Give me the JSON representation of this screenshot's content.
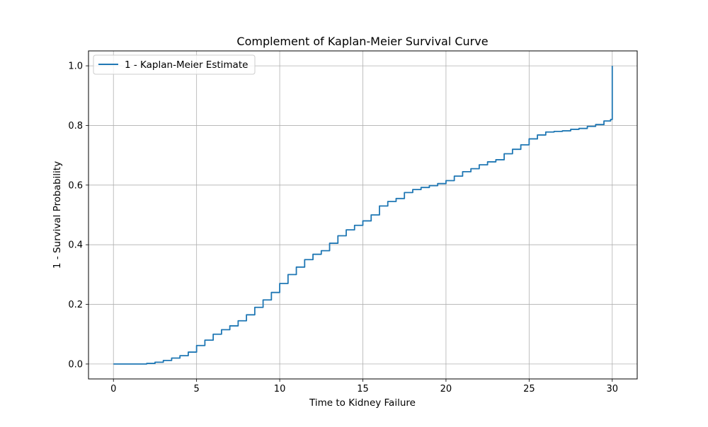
{
  "chart_data": {
    "type": "line",
    "title": "Complement of Kaplan-Meier Survival Curve",
    "xlabel": "Time to Kidney Failure",
    "ylabel": "1 - Survival Probability",
    "xlim": [
      -1.5,
      31.5
    ],
    "ylim": [
      -0.05,
      1.05
    ],
    "x_ticks": [
      0,
      5,
      10,
      15,
      20,
      25,
      30
    ],
    "y_ticks": [
      0.0,
      0.2,
      0.4,
      0.6,
      0.8,
      1.0
    ],
    "x_tick_labels": [
      "0",
      "5",
      "10",
      "15",
      "20",
      "25",
      "30"
    ],
    "y_tick_labels": [
      "0.0",
      "0.2",
      "0.4",
      "0.6",
      "0.8",
      "1.0"
    ],
    "grid": true,
    "legend_position": "top-left",
    "series": [
      {
        "name": "1 - Kaplan-Meier Estimate",
        "color": "#1f77b4",
        "step": true,
        "x": [
          0,
          1.5,
          2,
          2.5,
          3,
          3.5,
          4,
          4.5,
          5,
          5.5,
          6,
          6.5,
          7,
          7.5,
          8,
          8.5,
          9,
          9.5,
          10,
          10.5,
          11,
          11.5,
          12,
          12.5,
          13,
          13.5,
          14,
          14.5,
          15,
          15.5,
          16,
          16.5,
          17,
          17.5,
          18,
          18.5,
          19,
          19.5,
          20,
          20.5,
          21,
          21.5,
          22,
          22.5,
          23,
          23.5,
          24,
          24.5,
          25,
          25.5,
          26,
          26.5,
          27,
          27.5,
          28,
          28.5,
          29,
          29.5,
          29.9,
          30
        ],
        "y": [
          0.0,
          0.0,
          0.002,
          0.006,
          0.012,
          0.02,
          0.028,
          0.04,
          0.062,
          0.08,
          0.1,
          0.115,
          0.128,
          0.145,
          0.165,
          0.19,
          0.215,
          0.24,
          0.27,
          0.3,
          0.325,
          0.35,
          0.368,
          0.38,
          0.405,
          0.43,
          0.45,
          0.465,
          0.48,
          0.5,
          0.53,
          0.545,
          0.555,
          0.575,
          0.585,
          0.592,
          0.598,
          0.605,
          0.615,
          0.63,
          0.645,
          0.655,
          0.668,
          0.678,
          0.685,
          0.705,
          0.72,
          0.735,
          0.755,
          0.768,
          0.778,
          0.78,
          0.782,
          0.787,
          0.79,
          0.797,
          0.803,
          0.815,
          0.82,
          1.0
        ]
      }
    ]
  }
}
